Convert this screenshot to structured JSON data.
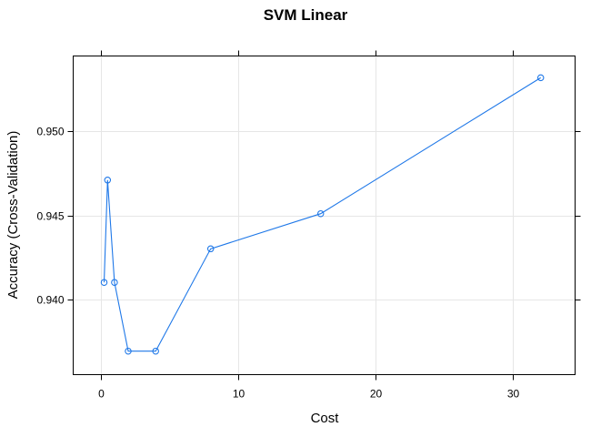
{
  "chart_data": {
    "type": "line",
    "title": "SVM Linear",
    "xlabel": "Cost",
    "ylabel": "Accuracy (Cross-Validation)",
    "xlim": [
      -2,
      34.5
    ],
    "ylim": [
      0.9355,
      0.9545
    ],
    "x_ticks": [
      0,
      10,
      20,
      30
    ],
    "x_tick_labels": [
      "0",
      "10",
      "20",
      "30"
    ],
    "y_ticks": [
      0.94,
      0.945,
      0.95
    ],
    "y_tick_labels": [
      "0.940",
      "0.945",
      "0.950"
    ],
    "grid": true,
    "color": "#1f78e8",
    "series": [
      {
        "x": [
          0.25,
          0.5,
          1,
          2,
          4,
          8,
          16,
          32
        ],
        "values": [
          0.941,
          0.9471,
          0.941,
          0.9369,
          0.9369,
          0.943,
          0.9451,
          0.9532
        ]
      }
    ]
  }
}
